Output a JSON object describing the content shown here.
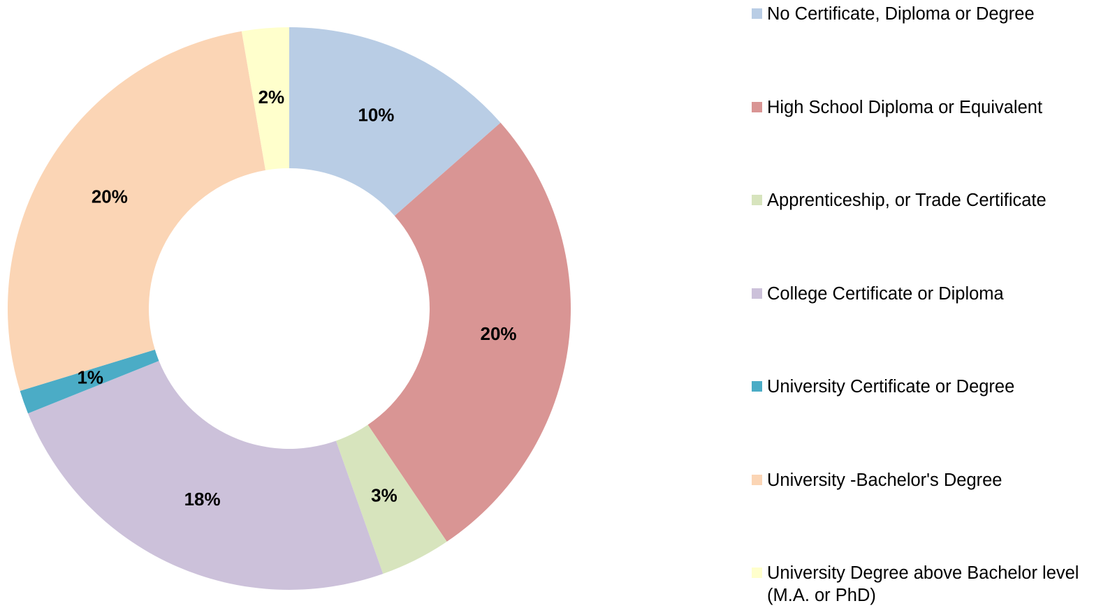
{
  "chart_data": {
    "type": "donut",
    "categories": [
      "No Certificate, Diploma or Degree",
      "High School Diploma or Equivalent",
      "Apprenticeship, or Trade Certificate",
      "College Certificate or Diploma",
      "University Certificate or Degree",
      "University -Bachelor's Degree",
      "University Degree above Bachelor level (M.A. or PhD)"
    ],
    "values": [
      10,
      20,
      3,
      18,
      1,
      20,
      2
    ],
    "value_labels": [
      "10%",
      "20%",
      "3%",
      "18%",
      "1%",
      "20%",
      "2%"
    ],
    "colors": [
      "#b9cde5",
      "#d99594",
      "#d7e4bd",
      "#ccc1da",
      "#4bacc6",
      "#fbd5b5",
      "#ffffcc"
    ],
    "legend": "right"
  }
}
